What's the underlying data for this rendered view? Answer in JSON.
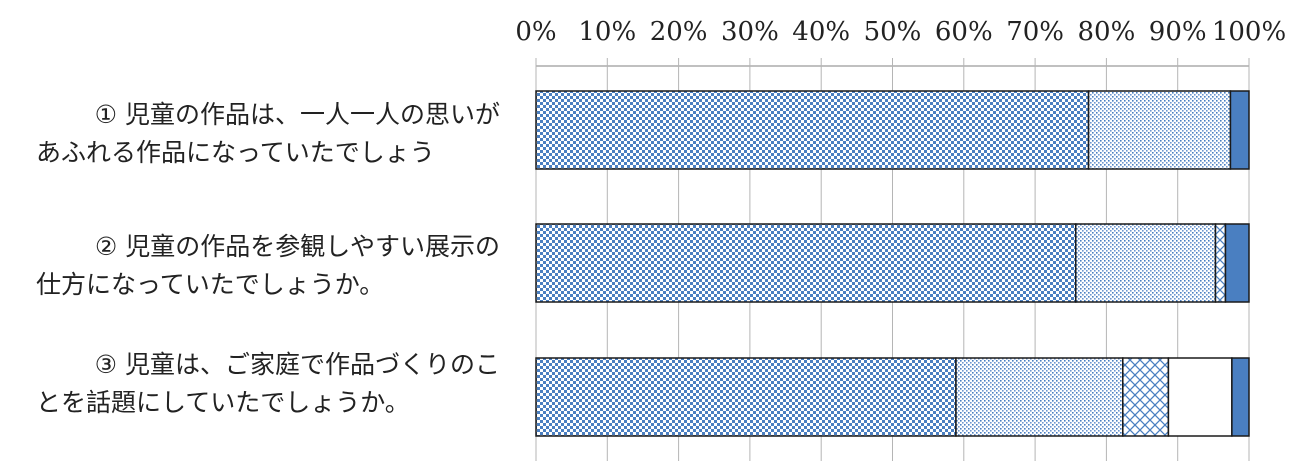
{
  "chart_data": {
    "type": "bar",
    "orientation": "horizontal",
    "stacked": true,
    "percent": true,
    "xlim": [
      0,
      100
    ],
    "x_tick_labels": [
      "0%",
      "10%",
      "20%",
      "30%",
      "40%",
      "50%",
      "60%",
      "70%",
      "80%",
      "90%",
      "100%"
    ],
    "grid": true,
    "categories": [
      {
        "line1": "① 児童の作品は、一人一人の思いが",
        "line2": "あふれる作品になっていたでしょう"
      },
      {
        "line1": "② 児童の作品を参観しやすい展示の",
        "line2": "仕方になっていたでしょうか。"
      },
      {
        "line1": "③ 児童は、ご家庭で作品づくりのこ",
        "line2": "とを話題にしていたでしょうか。"
      }
    ],
    "series": [
      {
        "pattern": "checker-dense",
        "color": "#4a7fc1",
        "values": [
          77.5,
          75.7,
          58.9
        ]
      },
      {
        "pattern": "dots-fine",
        "color": "#4a7fc1",
        "values": [
          19.9,
          19.6,
          23.4
        ]
      },
      {
        "pattern": "diagonal-cross",
        "color": "#4a7fc1",
        "values": [
          0,
          1.4,
          6.4
        ]
      },
      {
        "pattern": "blank",
        "color": "#ffffff",
        "values": [
          0,
          0,
          8.9
        ]
      },
      {
        "pattern": "solid",
        "color": "#4a7fc1",
        "values": [
          2.6,
          3.3,
          2.4
        ]
      }
    ]
  }
}
